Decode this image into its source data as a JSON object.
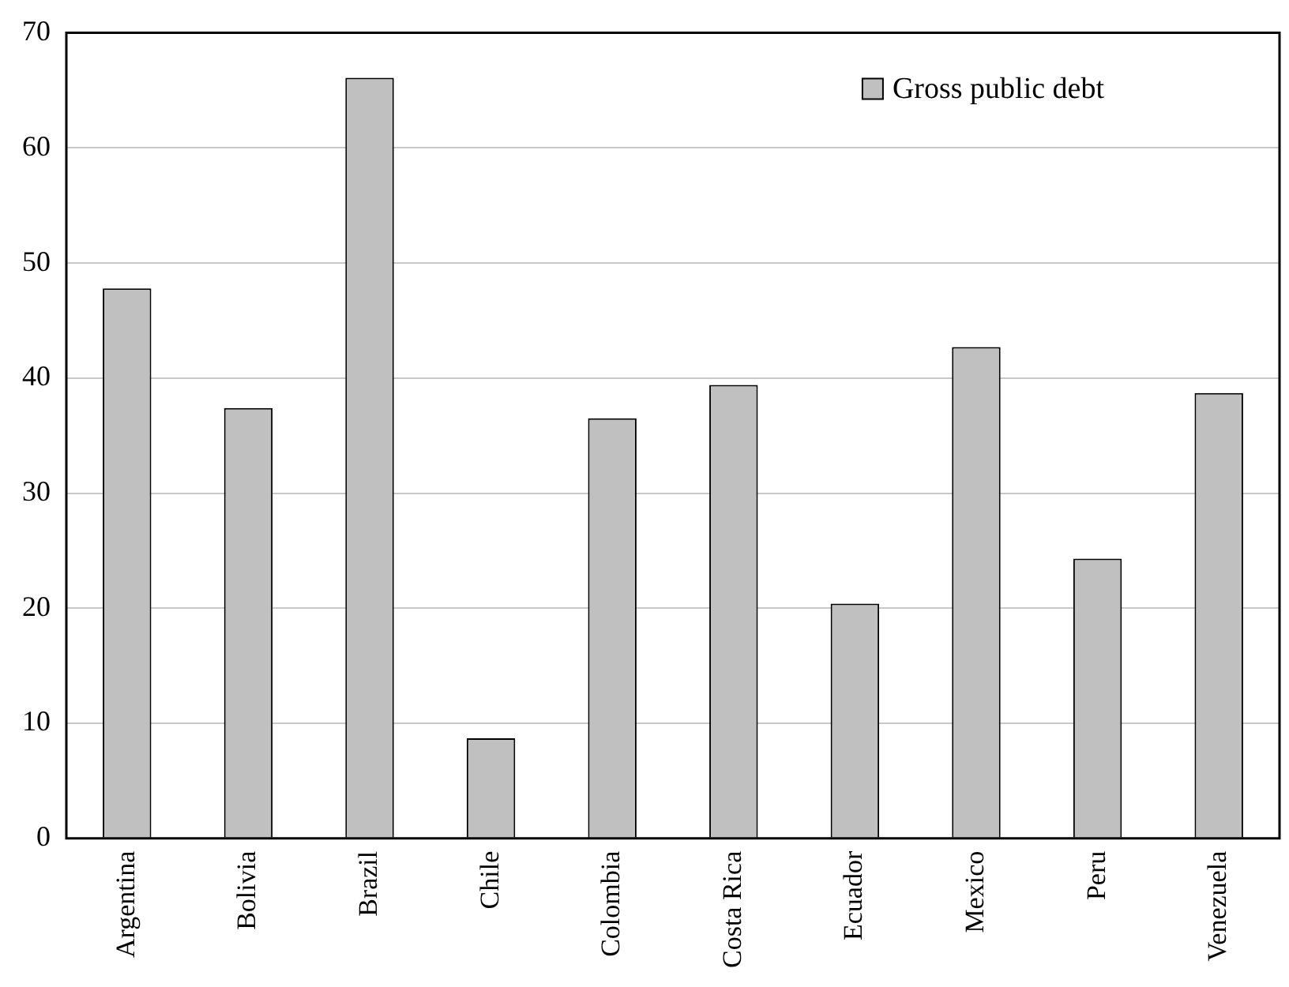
{
  "chart_data": {
    "type": "bar",
    "categories": [
      "Argentina",
      "Bolivia",
      "Brazil",
      "Chile",
      "Colombia",
      "Costa Rica",
      "Ecuador",
      "Mexico",
      "Peru",
      "Venezuela"
    ],
    "series": [
      {
        "name": "Gross public debt",
        "color": "#c0c0c0",
        "values": [
          47.8,
          37.4,
          66.1,
          8.7,
          36.5,
          39.4,
          20.4,
          42.7,
          24.3,
          38.7
        ]
      }
    ],
    "ylim": [
      0,
      70
    ],
    "yticks": [
      0,
      10,
      20,
      30,
      40,
      50,
      60,
      70
    ],
    "grid": "y",
    "legend": "top right"
  }
}
